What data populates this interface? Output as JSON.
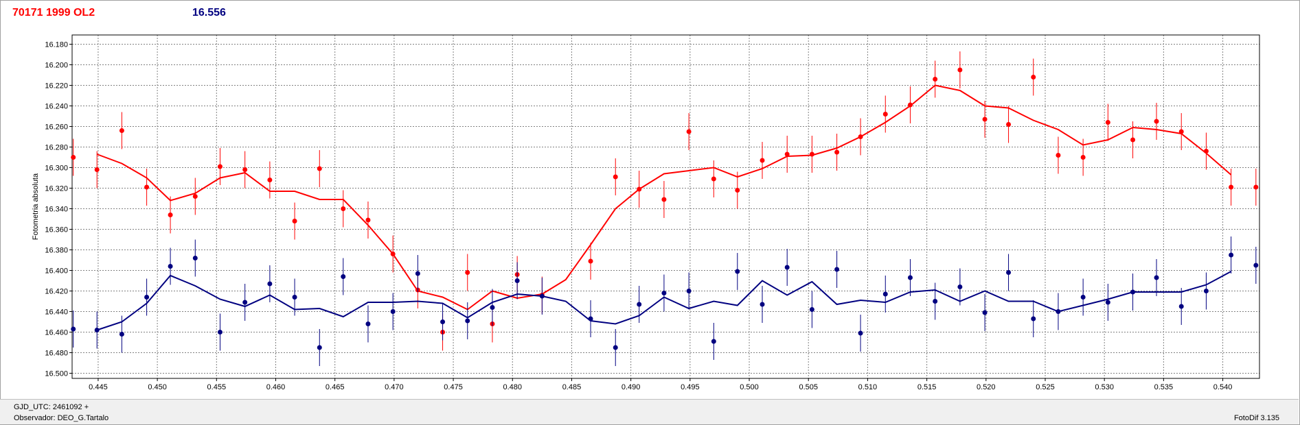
{
  "header": {
    "object_name": "70171 1999 OL2",
    "reference_magnitude": "16.556"
  },
  "footer": {
    "gjd_text": "GJD_UTC: 2461092 +",
    "observer_text": "Observador: DEO_G.Tartalo",
    "version_text": "FotoDif 3.135"
  },
  "chart_data": {
    "type": "scatter",
    "ylabel": "Fotometria absoluta",
    "xlabel": "",
    "xlim": [
      0.4428,
      0.5431
    ],
    "ylim": [
      16.171,
      16.505
    ],
    "y_inverted": true,
    "grid": true,
    "x_ticks": [
      "0.445",
      "0.450",
      "0.455",
      "0.460",
      "0.465",
      "0.470",
      "0.475",
      "0.480",
      "0.485",
      "0.490",
      "0.495",
      "0.500",
      "0.505",
      "0.510",
      "0.515",
      "0.520",
      "0.525",
      "0.530",
      "0.535",
      "0.540"
    ],
    "y_ticks": [
      "16.180",
      "16.200",
      "16.220",
      "16.240",
      "16.260",
      "16.280",
      "16.300",
      "16.320",
      "16.340",
      "16.360",
      "16.380",
      "16.400",
      "16.420",
      "16.440",
      "16.460",
      "16.480",
      "16.500"
    ],
    "error_bar": 0.018,
    "series": [
      {
        "color": "#ff0000",
        "x": [
          0.4429,
          0.4449,
          0.447,
          0.4491,
          0.4511,
          0.4532,
          0.4553,
          0.4574,
          0.4595,
          0.4616,
          0.4637,
          0.4657,
          0.4678,
          0.4699,
          0.472,
          0.4741,
          0.4762,
          0.4783,
          0.4804,
          0.4825,
          0.4866,
          0.4887,
          0.4907,
          0.4928,
          0.4949,
          0.497,
          0.499,
          0.5011,
          0.5032,
          0.5053,
          0.5074,
          0.5094,
          0.5115,
          0.5136,
          0.5157,
          0.5178,
          0.5199,
          0.5219,
          0.524,
          0.5261,
          0.5282,
          0.5303,
          0.5324,
          0.5344,
          0.5365,
          0.5386,
          0.5407,
          0.5428
        ],
        "y": [
          16.29,
          16.302,
          16.264,
          16.319,
          16.346,
          16.328,
          16.299,
          16.302,
          16.312,
          16.352,
          16.301,
          16.34,
          16.351,
          16.384,
          16.419,
          16.46,
          16.402,
          16.452,
          16.404,
          16.424,
          16.391,
          16.309,
          16.321,
          16.331,
          16.265,
          16.311,
          16.322,
          16.293,
          16.287,
          16.287,
          16.285,
          16.27,
          16.248,
          16.239,
          16.214,
          16.205,
          16.253,
          16.258,
          16.212,
          16.288,
          16.29,
          16.256,
          16.273,
          16.255,
          16.265,
          16.284,
          16.319,
          16.319
        ],
        "trend_x": [
          0.4449,
          0.447,
          0.4491,
          0.4511,
          0.4532,
          0.4553,
          0.4574,
          0.4595,
          0.4616,
          0.4637,
          0.4657,
          0.4678,
          0.4699,
          0.472,
          0.4741,
          0.4762,
          0.4783,
          0.4804,
          0.4825,
          0.4845,
          0.4866,
          0.4887,
          0.4907,
          0.4928,
          0.4949,
          0.497,
          0.499,
          0.5011,
          0.5032,
          0.5053,
          0.5074,
          0.5094,
          0.5115,
          0.5136,
          0.5157,
          0.5178,
          0.5199,
          0.5219,
          0.524,
          0.5261,
          0.5282,
          0.5303,
          0.5324,
          0.5344,
          0.5365,
          0.5386,
          0.5407
        ],
        "trend_y": [
          16.287,
          16.296,
          16.31,
          16.332,
          16.325,
          16.31,
          16.305,
          16.323,
          16.323,
          16.331,
          16.331,
          16.356,
          16.384,
          16.42,
          16.426,
          16.438,
          16.42,
          16.427,
          16.423,
          16.409,
          16.375,
          16.34,
          16.321,
          16.306,
          16.303,
          16.3,
          16.309,
          16.301,
          16.289,
          16.288,
          16.281,
          16.27,
          16.256,
          16.24,
          16.22,
          16.225,
          16.24,
          16.242,
          16.254,
          16.263,
          16.278,
          16.273,
          16.261,
          16.263,
          16.267,
          16.286,
          16.307
        ]
      },
      {
        "color": "#000080",
        "x": [
          0.4429,
          0.4449,
          0.447,
          0.4491,
          0.4511,
          0.4532,
          0.4553,
          0.4574,
          0.4595,
          0.4616,
          0.4637,
          0.4657,
          0.4678,
          0.4699,
          0.472,
          0.4741,
          0.4762,
          0.4783,
          0.4804,
          0.4825,
          0.4866,
          0.4887,
          0.4907,
          0.4928,
          0.4949,
          0.497,
          0.499,
          0.5011,
          0.5032,
          0.5053,
          0.5074,
          0.5094,
          0.5115,
          0.5136,
          0.5157,
          0.5178,
          0.5199,
          0.5219,
          0.524,
          0.5261,
          0.5282,
          0.5303,
          0.5324,
          0.5344,
          0.5365,
          0.5386,
          0.5407,
          0.5428
        ],
        "y": [
          16.457,
          16.458,
          16.462,
          16.426,
          16.396,
          16.388,
          16.46,
          16.431,
          16.413,
          16.426,
          16.475,
          16.406,
          16.452,
          16.44,
          16.403,
          16.45,
          16.449,
          16.436,
          16.41,
          16.425,
          16.447,
          16.475,
          16.433,
          16.422,
          16.42,
          16.469,
          16.401,
          16.433,
          16.397,
          16.438,
          16.399,
          16.461,
          16.423,
          16.407,
          16.43,
          16.416,
          16.441,
          16.402,
          16.447,
          16.44,
          16.426,
          16.431,
          16.421,
          16.407,
          16.435,
          16.42,
          16.385,
          16.395
        ],
        "trend_x": [
          0.4449,
          0.447,
          0.4491,
          0.4511,
          0.4532,
          0.4553,
          0.4574,
          0.4595,
          0.4616,
          0.4637,
          0.4657,
          0.4678,
          0.4699,
          0.472,
          0.4741,
          0.4762,
          0.4783,
          0.4804,
          0.4825,
          0.4845,
          0.4866,
          0.4887,
          0.4907,
          0.4928,
          0.4949,
          0.497,
          0.499,
          0.5011,
          0.5032,
          0.5053,
          0.5074,
          0.5094,
          0.5115,
          0.5136,
          0.5157,
          0.5178,
          0.5199,
          0.5219,
          0.524,
          0.5261,
          0.5282,
          0.5303,
          0.5324,
          0.5344,
          0.5365,
          0.5386,
          0.5407
        ],
        "trend_y": [
          16.458,
          16.45,
          16.432,
          16.405,
          16.415,
          16.428,
          16.435,
          16.424,
          16.438,
          16.437,
          16.445,
          16.431,
          16.431,
          16.43,
          16.432,
          16.446,
          16.431,
          16.423,
          16.425,
          16.43,
          16.449,
          16.452,
          16.444,
          16.426,
          16.437,
          16.43,
          16.434,
          16.41,
          16.424,
          16.411,
          16.433,
          16.429,
          16.431,
          16.421,
          16.419,
          16.43,
          16.42,
          16.43,
          16.43,
          16.44,
          16.434,
          16.428,
          16.421,
          16.421,
          16.421,
          16.414,
          16.401
        ]
      }
    ]
  }
}
